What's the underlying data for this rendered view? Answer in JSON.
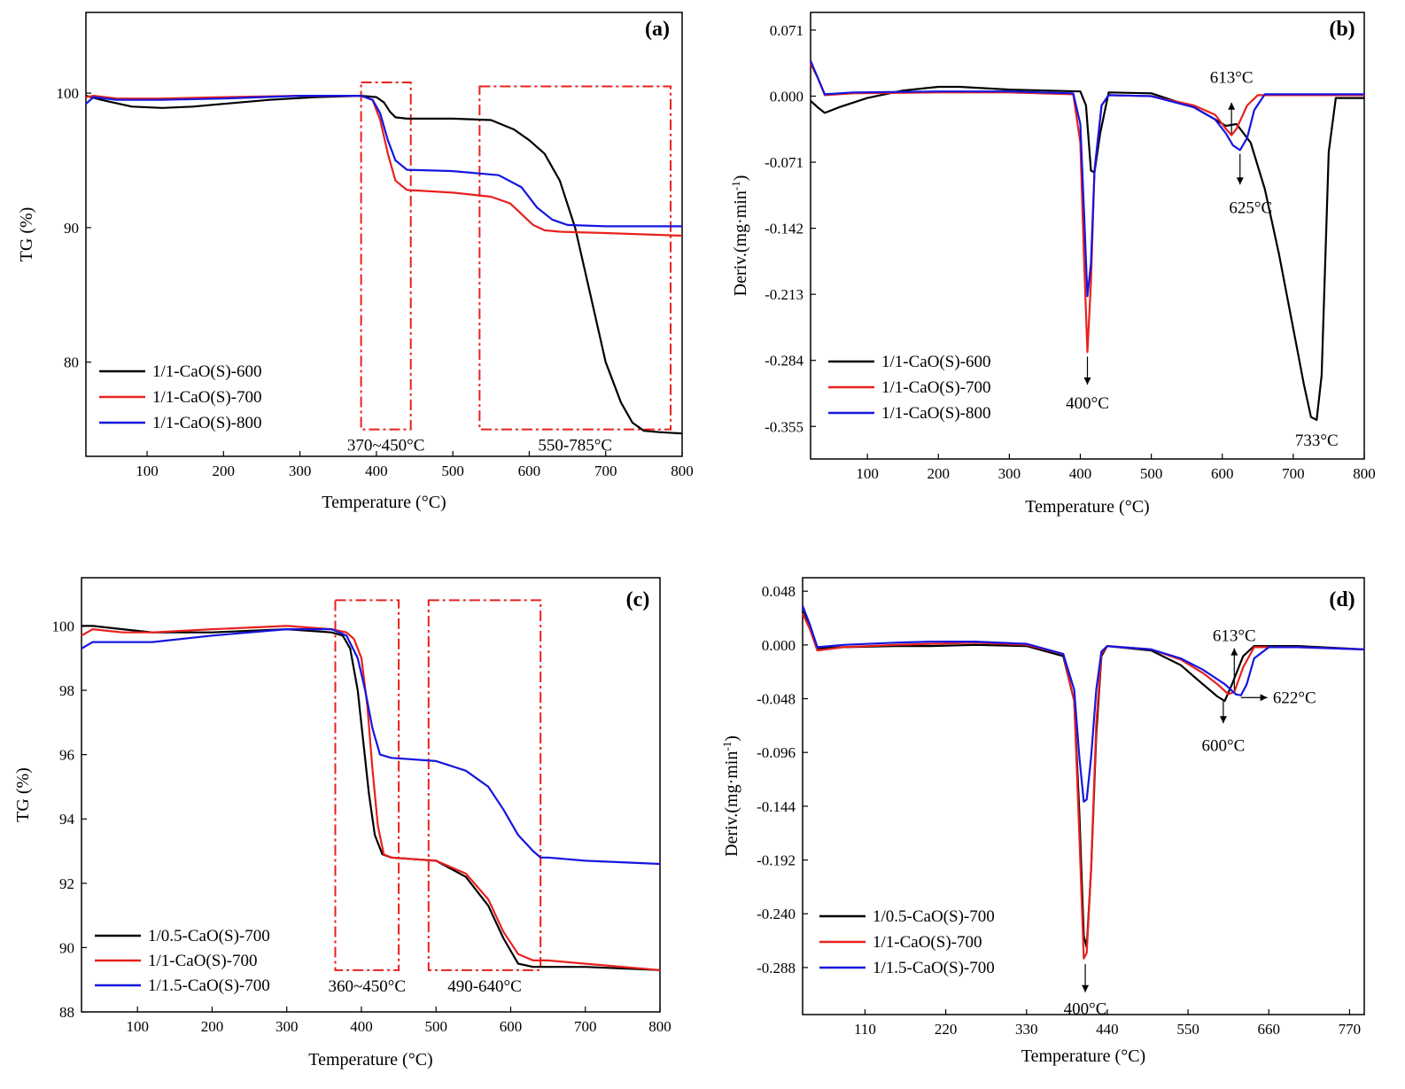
{
  "chart_data": [
    {
      "panel": "(a)",
      "type": "line",
      "xlabel": "Temperature (°C)",
      "ylabel": "TG (%)",
      "xlim": [
        20,
        800
      ],
      "ylim": [
        73,
        106
      ],
      "xticks": [
        100,
        200,
        300,
        400,
        500,
        600,
        700,
        800
      ],
      "yticks": [
        80,
        90,
        100
      ],
      "legend_position": "bottom-left",
      "series": [
        {
          "name": "1/1-CaO(S)-600",
          "color": "#000000",
          "x": [
            20,
            40,
            80,
            120,
            160,
            200,
            260,
            320,
            380,
            400,
            410,
            418,
            425,
            440,
            500,
            550,
            580,
            600,
            620,
            640,
            660,
            680,
            700,
            720,
            735,
            750,
            770,
            800
          ],
          "y": [
            99.8,
            99.5,
            99.0,
            98.9,
            99.0,
            99.2,
            99.5,
            99.7,
            99.8,
            99.7,
            99.3,
            98.6,
            98.2,
            98.1,
            98.1,
            98.0,
            97.3,
            96.5,
            95.5,
            93.5,
            90.0,
            85.0,
            80.0,
            77.0,
            75.5,
            74.9,
            74.8,
            74.7
          ]
        },
        {
          "name": "1/1-CaO(S)-700",
          "color": "#e8211d",
          "x": [
            20,
            30,
            60,
            120,
            200,
            300,
            380,
            395,
            405,
            415,
            425,
            440,
            500,
            550,
            575,
            590,
            605,
            620,
            640,
            700,
            800
          ],
          "y": [
            99.7,
            99.8,
            99.6,
            99.6,
            99.7,
            99.8,
            99.8,
            99.5,
            98.0,
            95.5,
            93.5,
            92.8,
            92.6,
            92.3,
            91.8,
            91.0,
            90.2,
            89.8,
            89.7,
            89.6,
            89.4
          ]
        },
        {
          "name": "1/1-CaO(S)-800",
          "color": "#1515e0",
          "x": [
            20,
            30,
            60,
            120,
            200,
            300,
            380,
            395,
            405,
            415,
            425,
            440,
            500,
            560,
            590,
            610,
            630,
            650,
            700,
            800
          ],
          "y": [
            99.2,
            99.7,
            99.5,
            99.5,
            99.6,
            99.8,
            99.8,
            99.5,
            98.5,
            96.5,
            95.0,
            94.3,
            94.2,
            93.9,
            93.0,
            91.5,
            90.6,
            90.2,
            90.1,
            90.1
          ]
        }
      ],
      "regions": [
        {
          "label": "370~450°C",
          "x": [
            380,
            445
          ],
          "y": [
            75.0,
            100.8
          ]
        },
        {
          "label": "550-785°C",
          "x": [
            535,
            785
          ],
          "y": [
            75.0,
            100.5
          ]
        }
      ],
      "annotations": []
    },
    {
      "panel": "(b)",
      "type": "line",
      "xlabel": "Temperature (°C)",
      "ylabel": "Deriv.(mg·min",
      "ylabel_superscript": "-1",
      "ylabel_close": ")",
      "xlim": [
        20,
        800
      ],
      "ylim": [
        -0.39,
        0.09
      ],
      "xticks": [
        100,
        200,
        300,
        400,
        500,
        600,
        700,
        800
      ],
      "yticks": [
        0.071,
        0.0,
        -0.071,
        -0.142,
        -0.213,
        -0.284,
        -0.355
      ],
      "ytick_labels": [
        "0.071",
        "0.000",
        "-0.071",
        "-0.142",
        "-0.213",
        "-0.284",
        "-0.355"
      ],
      "legend_position": "bottom-left",
      "series": [
        {
          "name": "1/1-CaO(S)-600",
          "color": "#000000",
          "x": [
            20,
            30,
            40,
            60,
            100,
            150,
            200,
            230,
            300,
            400,
            408,
            415,
            420,
            428,
            440,
            500,
            560,
            590,
            605,
            620,
            640,
            660,
            680,
            700,
            715,
            725,
            733,
            740,
            750,
            760,
            800
          ],
          "y": [
            -0.005,
            -0.012,
            -0.018,
            -0.012,
            -0.002,
            0.006,
            0.01,
            0.01,
            0.007,
            0.005,
            -0.01,
            -0.08,
            -0.082,
            -0.04,
            0.004,
            0.003,
            -0.012,
            -0.025,
            -0.032,
            -0.03,
            -0.05,
            -0.1,
            -0.17,
            -0.25,
            -0.31,
            -0.345,
            -0.348,
            -0.3,
            -0.06,
            -0.002,
            -0.002
          ]
        },
        {
          "name": "1/1-CaO(S)-700",
          "color": "#e8211d",
          "x": [
            20,
            30,
            40,
            80,
            200,
            300,
            390,
            400,
            405,
            410,
            415,
            420,
            430,
            440,
            500,
            560,
            590,
            605,
            613,
            620,
            635,
            650,
            700,
            800
          ],
          "y": [
            0.035,
            0.02,
            0.001,
            0.003,
            0.004,
            0.004,
            0.002,
            -0.05,
            -0.17,
            -0.275,
            -0.2,
            -0.08,
            -0.01,
            0.001,
            0.0,
            -0.01,
            -0.02,
            -0.035,
            -0.042,
            -0.035,
            -0.01,
            0.001,
            0.001,
            0.001
          ]
        },
        {
          "name": "1/1-CaO(S)-800",
          "color": "#1515e0",
          "x": [
            20,
            30,
            40,
            80,
            200,
            300,
            390,
            400,
            405,
            410,
            415,
            420,
            430,
            440,
            500,
            560,
            590,
            605,
            615,
            625,
            635,
            645,
            660,
            700,
            800
          ],
          "y": [
            0.038,
            0.02,
            0.002,
            0.004,
            0.005,
            0.005,
            0.003,
            -0.03,
            -0.12,
            -0.215,
            -0.18,
            -0.08,
            -0.01,
            0.001,
            0.0,
            -0.012,
            -0.025,
            -0.04,
            -0.053,
            -0.058,
            -0.045,
            -0.015,
            0.002,
            0.002,
            0.002
          ]
        }
      ],
      "regions": [],
      "annotations": [
        {
          "text": "613°C",
          "arrow_from": [
            613,
            -0.04
          ],
          "arrow_to": [
            613,
            -0.007
          ],
          "text_at": [
            613,
            0.02
          ]
        },
        {
          "text": "625°C",
          "arrow_from": [
            625,
            -0.062
          ],
          "arrow_to": [
            625,
            -0.095
          ],
          "text_at": [
            640,
            -0.12
          ]
        },
        {
          "text": "400°C",
          "arrow_from": [
            410,
            -0.28
          ],
          "arrow_to": [
            410,
            -0.31
          ],
          "text_at": [
            410,
            -0.33
          ]
        },
        {
          "text": "733°C",
          "arrow_from": null,
          "arrow_to": null,
          "text_at": [
            733,
            -0.37
          ]
        }
      ]
    },
    {
      "panel": "(c)",
      "type": "line",
      "xlabel": "Temperature (°C)",
      "ylabel": "TG (%)",
      "xlim": [
        25,
        800
      ],
      "ylim": [
        88,
        101.5
      ],
      "xticks": [
        100,
        200,
        300,
        400,
        500,
        600,
        700,
        800
      ],
      "yticks": [
        88,
        90,
        92,
        94,
        96,
        98,
        100
      ],
      "legend_position": "bottom-left",
      "series": [
        {
          "name": "1/0.5-CaO(S)-700",
          "color": "#000000",
          "x": [
            25,
            40,
            80,
            120,
            200,
            300,
            360,
            375,
            385,
            395,
            402,
            410,
            418,
            428,
            440,
            500,
            540,
            570,
            590,
            610,
            630,
            650,
            700,
            800
          ],
          "y": [
            100.0,
            100.0,
            99.9,
            99.8,
            99.8,
            99.9,
            99.8,
            99.7,
            99.3,
            98.0,
            96.5,
            94.8,
            93.5,
            92.9,
            92.8,
            92.7,
            92.2,
            91.3,
            90.3,
            89.5,
            89.4,
            89.4,
            89.4,
            89.3
          ]
        },
        {
          "name": "1/1-CaO(S)-700",
          "color": "#e8211d",
          "x": [
            25,
            40,
            80,
            120,
            200,
            300,
            360,
            380,
            390,
            400,
            408,
            415,
            422,
            430,
            440,
            500,
            540,
            570,
            590,
            610,
            630,
            650,
            700,
            800
          ],
          "y": [
            99.7,
            99.9,
            99.8,
            99.8,
            99.9,
            100.0,
            99.9,
            99.8,
            99.6,
            99.0,
            97.5,
            95.5,
            93.8,
            92.9,
            92.8,
            92.7,
            92.3,
            91.5,
            90.5,
            89.8,
            89.6,
            89.6,
            89.5,
            89.3
          ]
        },
        {
          "name": "1/1.5-CaO(S)-700",
          "color": "#1515e0",
          "x": [
            25,
            40,
            80,
            120,
            200,
            300,
            360,
            380,
            395,
            405,
            415,
            425,
            440,
            500,
            540,
            570,
            590,
            610,
            630,
            640,
            650,
            700,
            800
          ],
          "y": [
            99.3,
            99.5,
            99.5,
            99.5,
            99.7,
            99.9,
            99.9,
            99.7,
            99.0,
            98.0,
            96.8,
            96.0,
            95.9,
            95.8,
            95.5,
            95.0,
            94.3,
            93.5,
            93.0,
            92.8,
            92.8,
            92.7,
            92.6
          ]
        }
      ],
      "regions": [
        {
          "label": "360~450°C",
          "x": [
            365,
            450
          ],
          "y": [
            89.3,
            100.8
          ]
        },
        {
          "label": "490-640°C",
          "x": [
            490,
            640
          ],
          "y": [
            89.3,
            100.8
          ]
        }
      ],
      "annotations": []
    },
    {
      "panel": "(d)",
      "type": "line",
      "xlabel": "Temperature (°C)",
      "ylabel": "Deriv.(mg·min",
      "ylabel_superscript": "-1",
      "ylabel_close": ")",
      "xlim": [
        25,
        790
      ],
      "ylim": [
        -0.33,
        0.06
      ],
      "xticks": [
        110,
        220,
        330,
        440,
        550,
        660,
        770
      ],
      "yticks": [
        0.048,
        0.0,
        -0.048,
        -0.096,
        -0.144,
        -0.192,
        -0.24,
        -0.288
      ],
      "ytick_labels": [
        "0.048",
        "0.000",
        "-0.048",
        "-0.096",
        "-0.144",
        "-0.192",
        "-0.240",
        "-0.288"
      ],
      "legend_position": "bottom-left",
      "series": [
        {
          "name": "1/0.5-CaO(S)-700",
          "color": "#000000",
          "x": [
            25,
            35,
            45,
            80,
            150,
            200,
            260,
            330,
            380,
            395,
            402,
            408,
            412,
            418,
            425,
            432,
            440,
            500,
            540,
            570,
            590,
            600,
            610,
            625,
            640,
            700,
            790
          ],
          "y": [
            0.03,
            0.015,
            -0.003,
            -0.002,
            -0.001,
            -0.001,
            0.0,
            -0.001,
            -0.01,
            -0.05,
            -0.15,
            -0.26,
            -0.27,
            -0.2,
            -0.08,
            -0.01,
            -0.001,
            -0.005,
            -0.018,
            -0.035,
            -0.046,
            -0.05,
            -0.035,
            -0.01,
            -0.001,
            -0.001,
            -0.004
          ]
        },
        {
          "name": "1/1-CaO(S)-700",
          "color": "#e8211d",
          "x": [
            25,
            35,
            45,
            80,
            150,
            200,
            260,
            330,
            380,
            395,
            402,
            408,
            412,
            418,
            425,
            432,
            440,
            500,
            540,
            570,
            590,
            605,
            613,
            625,
            640,
            700,
            790
          ],
          "y": [
            0.028,
            0.014,
            -0.005,
            -0.002,
            0.0,
            0.001,
            0.002,
            0.0,
            -0.008,
            -0.05,
            -0.17,
            -0.28,
            -0.275,
            -0.2,
            -0.07,
            -0.008,
            -0.001,
            -0.004,
            -0.013,
            -0.025,
            -0.035,
            -0.044,
            -0.042,
            -0.02,
            -0.002,
            -0.002,
            -0.004
          ]
        },
        {
          "name": "1/1.5-CaO(S)-700",
          "color": "#1515e0",
          "x": [
            25,
            35,
            45,
            80,
            150,
            200,
            260,
            330,
            380,
            395,
            402,
            408,
            412,
            418,
            425,
            432,
            440,
            500,
            540,
            570,
            600,
            615,
            622,
            630,
            640,
            660,
            700,
            790
          ],
          "y": [
            0.035,
            0.018,
            -0.002,
            0.0,
            0.002,
            0.003,
            0.003,
            0.001,
            -0.008,
            -0.04,
            -0.1,
            -0.14,
            -0.138,
            -0.1,
            -0.04,
            -0.006,
            -0.001,
            -0.004,
            -0.012,
            -0.022,
            -0.035,
            -0.044,
            -0.045,
            -0.035,
            -0.012,
            -0.002,
            -0.002,
            -0.004
          ]
        }
      ],
      "regions": [],
      "annotations": [
        {
          "text": "613°C",
          "arrow_from": [
            613,
            -0.04
          ],
          "arrow_to": [
            613,
            -0.003
          ],
          "text_at": [
            613,
            0.008
          ]
        },
        {
          "text": "622°C",
          "arrow_from": [
            622,
            -0.047
          ],
          "arrow_to": [
            658,
            -0.047
          ],
          "text_at": [
            695,
            -0.047
          ]
        },
        {
          "text": "600°C",
          "arrow_from": [
            598,
            -0.05
          ],
          "arrow_to": [
            598,
            -0.07
          ],
          "text_at": [
            598,
            -0.09
          ]
        },
        {
          "text": "400°C",
          "arrow_from": [
            410,
            -0.285
          ],
          "arrow_to": [
            410,
            -0.31
          ],
          "text_at": [
            410,
            -0.325
          ]
        }
      ]
    }
  ]
}
